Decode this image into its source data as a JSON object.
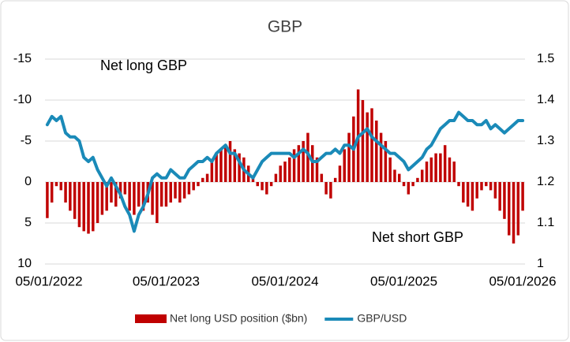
{
  "chart_data": {
    "type": "bar_line",
    "title": "GBP",
    "annotations": [
      "Net long GBP",
      "Net short GBP"
    ],
    "categories": [
      "05/01/2022",
      null,
      null,
      null,
      null,
      null,
      null,
      null,
      null,
      null,
      null,
      null,
      null,
      null,
      null,
      null,
      null,
      null,
      null,
      null,
      null,
      null,
      null,
      null,
      null,
      null,
      "05/01/2023",
      null,
      null,
      null,
      null,
      null,
      null,
      null,
      null,
      null,
      null,
      null,
      null,
      null,
      null,
      null,
      null,
      null,
      null,
      null,
      null,
      null,
      null,
      null,
      null,
      null,
      "05/01/2024",
      null,
      null,
      null,
      null,
      null,
      null,
      null,
      null,
      null,
      null,
      null,
      null,
      null,
      null,
      null,
      null,
      null,
      null,
      null,
      null,
      null,
      null,
      null,
      null,
      null,
      "05/01/2025",
      null,
      null,
      null,
      null,
      null,
      null,
      null,
      null,
      null,
      null,
      null,
      null,
      null,
      null,
      null,
      null,
      null,
      null,
      null,
      null,
      null,
      null,
      null,
      null,
      null,
      "05/01/2026"
    ],
    "series": [
      {
        "name": "Net long USD position ($bn)",
        "color": "#c00000",
        "axis": "y",
        "values": [
          4.4,
          2.5,
          0.5,
          1.0,
          2.5,
          3.5,
          4.5,
          5.5,
          6.0,
          6.3,
          6.0,
          5.0,
          4.0,
          3.5,
          2.5,
          3.0,
          2.0,
          1.5,
          3.5,
          4.0,
          3.0,
          3.5,
          2.5,
          4.0,
          5.0,
          3.0,
          3.0,
          2.5,
          2.0,
          2.5,
          2.0,
          1.5,
          1.0,
          0.5,
          -0.5,
          -1.0,
          -2.5,
          -3.5,
          -4.0,
          -4.5,
          -5.0,
          -4.0,
          -3.5,
          -3.0,
          -2.0,
          -0.5,
          0.5,
          1.0,
          1.5,
          0.5,
          -1.0,
          -2.0,
          -2.5,
          -3.0,
          -4.0,
          -4.5,
          -5.0,
          -6.0,
          -4.5,
          -3.0,
          -1.0,
          1.5,
          2.0,
          -0.5,
          -2.0,
          -4.0,
          -6.0,
          -8.0,
          -11.3,
          -10.0,
          -8.5,
          -9.0,
          -7.5,
          -6.0,
          -5.0,
          -3.0,
          -1.5,
          -1.0,
          0.5,
          1.5,
          0.5,
          -0.5,
          -1.5,
          -2.5,
          -3.0,
          -3.5,
          -3.5,
          -4.5,
          -3.0,
          -2.5,
          0.5,
          2.5,
          3.0,
          3.5,
          2.0,
          1.0,
          0.5,
          1.0,
          2.0,
          3.5,
          4.5,
          6.5,
          7.5,
          6.5,
          3.5
        ]
      },
      {
        "name": "GBP/USD",
        "color": "#1a8ab8",
        "axis": "y2",
        "values": [
          1.34,
          1.36,
          1.35,
          1.36,
          1.32,
          1.31,
          1.31,
          1.3,
          1.26,
          1.25,
          1.26,
          1.23,
          1.21,
          1.19,
          1.21,
          1.19,
          1.17,
          1.14,
          1.12,
          1.08,
          1.12,
          1.14,
          1.17,
          1.21,
          1.22,
          1.21,
          1.21,
          1.23,
          1.22,
          1.21,
          1.21,
          1.23,
          1.24,
          1.25,
          1.25,
          1.26,
          1.25,
          1.27,
          1.28,
          1.29,
          1.27,
          1.27,
          1.25,
          1.23,
          1.22,
          1.21,
          1.23,
          1.25,
          1.26,
          1.27,
          1.27,
          1.27,
          1.27,
          1.27,
          1.26,
          1.27,
          1.28,
          1.27,
          1.25,
          1.25,
          1.26,
          1.27,
          1.27,
          1.28,
          1.27,
          1.29,
          1.29,
          1.28,
          1.31,
          1.32,
          1.33,
          1.31,
          1.3,
          1.29,
          1.28,
          1.27,
          1.27,
          1.26,
          1.25,
          1.23,
          1.24,
          1.25,
          1.26,
          1.28,
          1.29,
          1.31,
          1.33,
          1.34,
          1.35,
          1.35,
          1.37,
          1.36,
          1.35,
          1.35,
          1.34,
          1.34,
          1.35,
          1.33,
          1.34,
          1.33,
          1.32,
          1.33,
          1.34,
          1.35,
          1.35
        ]
      }
    ],
    "ylim": [
      10,
      -15
    ],
    "yticks": [
      -15,
      -10,
      -5,
      0,
      5,
      10
    ],
    "y2lim": [
      1,
      1.5
    ],
    "y2ticks": [
      1,
      1.1,
      1.2,
      1.3,
      1.4,
      1.5
    ],
    "grid": true
  }
}
